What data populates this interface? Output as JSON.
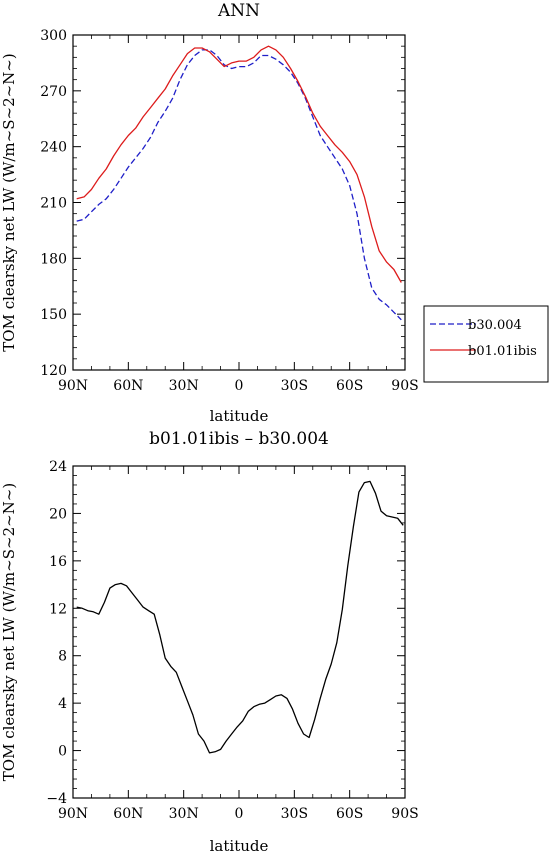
{
  "chart_data": [
    {
      "type": "line",
      "title": "ANN",
      "xlabel": "latitude",
      "ylabel": "TOM clearsky net LW (W/m~S~2~N~)",
      "x_tick_labels": [
        "90N",
        "60N",
        "30N",
        "0",
        "30S",
        "60S",
        "90S"
      ],
      "x_ticks": [
        -90,
        -60,
        -30,
        0,
        30,
        60,
        90
      ],
      "xlim": [
        -90,
        90
      ],
      "ylim": [
        120,
        300
      ],
      "y_ticks": [
        120,
        150,
        180,
        210,
        240,
        270,
        300
      ],
      "y_tick_labels": [
        "120",
        "150",
        "180",
        "210",
        "240",
        "270",
        "300"
      ],
      "legend": {
        "placement": "right"
      },
      "x": [
        -88,
        -84,
        -80,
        -76,
        -72,
        -68,
        -64,
        -60,
        -56,
        -52,
        -48,
        -44,
        -40,
        -36,
        -32,
        -28,
        -24,
        -20,
        -16,
        -12,
        -8,
        -4,
        0,
        4,
        8,
        12,
        16,
        20,
        24,
        28,
        32,
        36,
        40,
        44,
        48,
        52,
        56,
        60,
        64,
        68,
        72,
        76,
        80,
        84,
        88
      ],
      "series": [
        {
          "name": "b30.004",
          "color": "#1f1fc8",
          "dash": "dashed",
          "values": [
            200,
            201,
            205,
            209,
            212,
            217,
            223,
            229,
            234,
            239,
            245,
            253,
            259,
            266,
            276,
            284,
            289,
            292,
            292,
            289,
            284,
            282,
            283,
            283,
            285,
            289,
            289,
            287,
            284,
            280,
            274,
            266,
            256,
            246,
            240,
            234,
            228,
            219,
            204,
            180,
            164,
            158,
            155,
            151,
            147
          ]
        },
        {
          "name": "b01.01ibis",
          "color": "#dd1c1c",
          "dash": "solid",
          "values": [
            212,
            213,
            217,
            223,
            228,
            235,
            241,
            246,
            250,
            256,
            261,
            266,
            271,
            278,
            284,
            290,
            293,
            293,
            291,
            287,
            283,
            285,
            286,
            286,
            288,
            292,
            294,
            292,
            288,
            282,
            275,
            267,
            258,
            251,
            246,
            241,
            237,
            232,
            225,
            213,
            197,
            184,
            178,
            174,
            167
          ]
        }
      ]
    },
    {
      "type": "line",
      "title": "b01.01ibis – b30.004",
      "xlabel": "latitude",
      "ylabel": "TOM clearsky net LW (W/m~S~2~N~)",
      "x_tick_labels": [
        "90N",
        "60N",
        "30N",
        "0",
        "30S",
        "60S",
        "90S"
      ],
      "x_ticks": [
        -90,
        -60,
        -30,
        0,
        30,
        60,
        90
      ],
      "xlim": [
        -90,
        90
      ],
      "ylim": [
        -4,
        24
      ],
      "y_ticks": [
        -4,
        0,
        4,
        8,
        12,
        16,
        20,
        24
      ],
      "y_tick_labels": [
        "−4",
        "0",
        "4",
        "8",
        "12",
        "16",
        "20",
        "24"
      ],
      "x": [
        -88,
        -85,
        -82,
        -79,
        -76,
        -73,
        -70,
        -67,
        -64,
        -61,
        -58,
        -55,
        -52,
        -49,
        -46,
        -43,
        -40,
        -37,
        -34,
        -31,
        -28,
        -25,
        -22,
        -19,
        -16,
        -13,
        -10,
        -7,
        -4,
        -1,
        2,
        5,
        8,
        11,
        14,
        17,
        20,
        23,
        26,
        29,
        32,
        35,
        38,
        41,
        44,
        47,
        50,
        53,
        56,
        59,
        62,
        65,
        68,
        71,
        74,
        77,
        80,
        83,
        86,
        89
      ],
      "series": [
        {
          "name": "",
          "color": "#000000",
          "dash": "solid",
          "values": [
            12.1,
            12.0,
            11.8,
            11.7,
            11.5,
            12.5,
            13.7,
            14.0,
            14.1,
            13.9,
            13.3,
            12.7,
            12.1,
            11.8,
            11.5,
            9.8,
            7.8,
            7.1,
            6.6,
            5.4,
            4.2,
            3.0,
            1.4,
            0.8,
            -0.2,
            -0.1,
            0.1,
            0.8,
            1.4,
            2.0,
            2.5,
            3.3,
            3.7,
            3.9,
            4.0,
            4.3,
            4.6,
            4.7,
            4.4,
            3.5,
            2.3,
            1.4,
            1.1,
            2.6,
            4.4,
            6.0,
            7.3,
            9.1,
            11.9,
            15.6,
            18.9,
            21.8,
            22.6,
            22.7,
            21.7,
            20.2,
            19.8,
            19.7,
            19.6,
            19.0
          ]
        }
      ]
    }
  ]
}
